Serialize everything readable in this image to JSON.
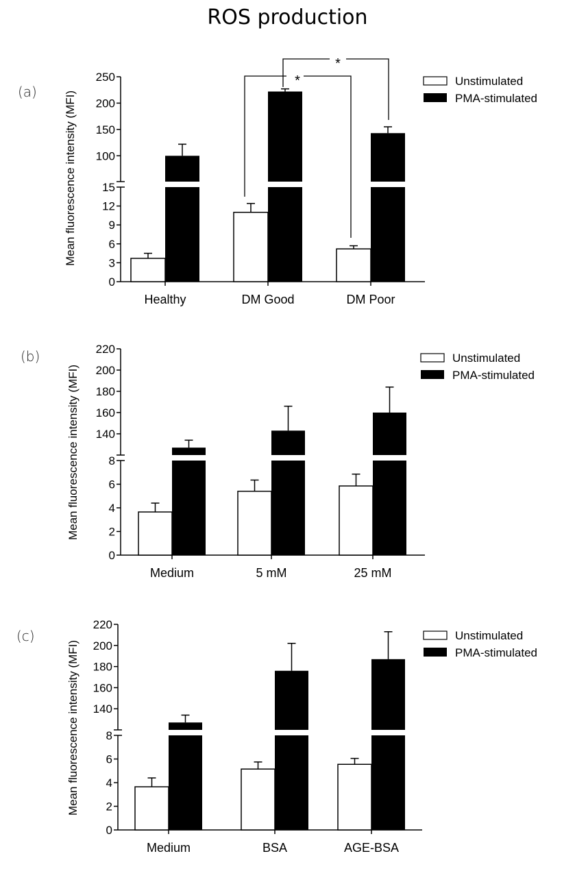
{
  "title": "ROS production",
  "chart_data": [
    {
      "panel": "(a)",
      "type": "bar",
      "ylabel": "Mean fluorescence intensity (MFI)",
      "categories": [
        "Healthy",
        "DM Good",
        "DM Poor"
      ],
      "broken_axis": true,
      "lower_range": [
        0,
        15
      ],
      "lower_ticks": [
        0,
        3,
        6,
        9,
        12,
        15
      ],
      "upper_range": [
        90,
        250
      ],
      "upper_ticks": [
        100,
        150,
        200,
        250
      ],
      "series": [
        {
          "name": "Unstimulated",
          "color": "#ffffff",
          "values": [
            3.7,
            11.0,
            5.2
          ],
          "error_upper": [
            4.5,
            12.4,
            5.7
          ]
        },
        {
          "name": "PMA-stimulated",
          "color": "#000000",
          "values": [
            100,
            222,
            143
          ],
          "error_upper": [
            122,
            227,
            155
          ]
        }
      ],
      "legend": {
        "entries": [
          "Unstimulated",
          "PMA-stimulated"
        ],
        "position": "top-right"
      },
      "annotations": [
        {
          "text": "*",
          "from": "DM Good Unstimulated",
          "to": "DM Poor Unstimulated"
        },
        {
          "text": "*",
          "from": "DM Good PMA-stimulated",
          "to": "DM Poor PMA-stimulated"
        }
      ]
    },
    {
      "panel": "(b)",
      "type": "bar",
      "ylabel": "Mean fluorescence intensity (MFI)",
      "categories": [
        "Medium",
        "5 mM",
        "25 mM"
      ],
      "broken_axis": true,
      "lower_range": [
        0,
        8
      ],
      "lower_ticks": [
        0,
        2,
        4,
        6,
        8
      ],
      "upper_range": [
        120,
        220
      ],
      "upper_ticks": [
        140,
        160,
        180,
        200,
        220
      ],
      "series": [
        {
          "name": "Unstimulated",
          "color": "#ffffff",
          "values": [
            3.65,
            5.4,
            5.85
          ],
          "error_upper": [
            4.4,
            6.35,
            6.85
          ]
        },
        {
          "name": "PMA-stimulated",
          "color": "#000000",
          "values": [
            127,
            143,
            160
          ],
          "error_upper": [
            134,
            166,
            184
          ]
        }
      ],
      "legend": {
        "entries": [
          "Unstimulated",
          "PMA-stimulated"
        ],
        "position": "top-right"
      },
      "annotations": []
    },
    {
      "panel": "(c)",
      "type": "bar",
      "ylabel": "Mean fluorescence intensity (MFI)",
      "categories": [
        "Medium",
        "BSA",
        "AGE-BSA"
      ],
      "broken_axis": true,
      "lower_range": [
        0,
        8
      ],
      "lower_ticks": [
        0,
        2,
        4,
        6,
        8
      ],
      "upper_range": [
        120,
        220
      ],
      "upper_ticks": [
        140,
        160,
        180,
        200,
        220
      ],
      "series": [
        {
          "name": "Unstimulated",
          "color": "#ffffff",
          "values": [
            3.65,
            5.15,
            5.55
          ],
          "error_upper": [
            4.4,
            5.75,
            6.05
          ]
        },
        {
          "name": "PMA-stimulated",
          "color": "#000000",
          "values": [
            127,
            176,
            187
          ],
          "error_upper": [
            134,
            202,
            213
          ]
        }
      ],
      "legend": {
        "entries": [
          "Unstimulated",
          "PMA-stimulated"
        ],
        "position": "top-right"
      },
      "annotations": []
    }
  ]
}
